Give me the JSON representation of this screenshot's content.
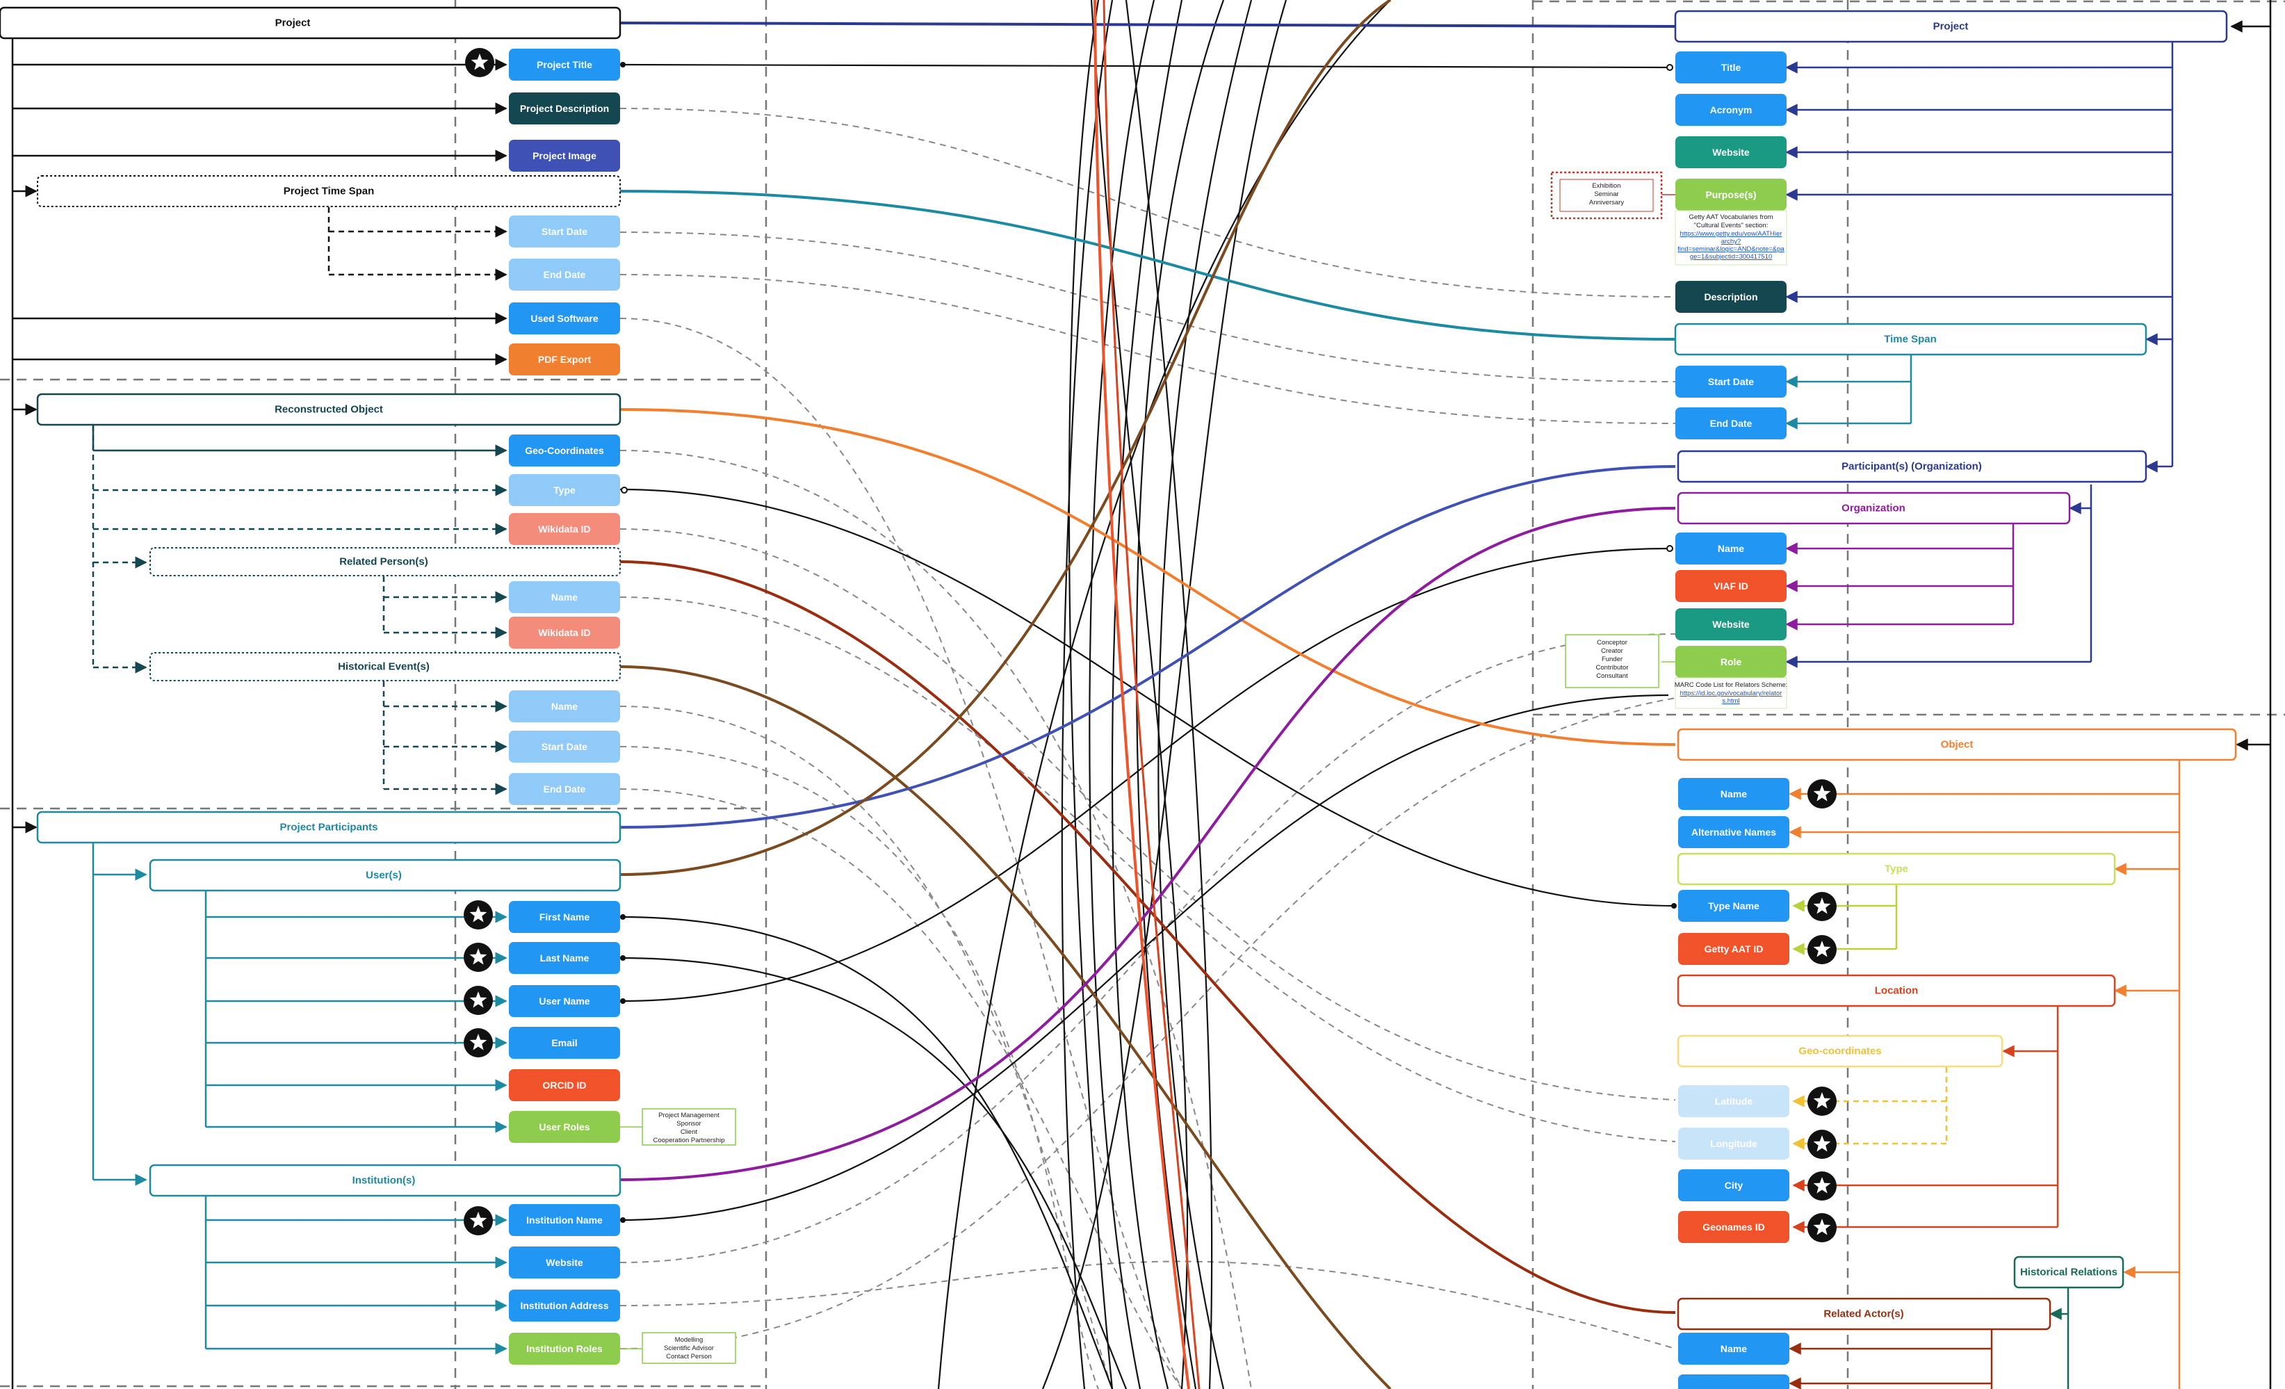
{
  "colors": {
    "blue": "#2196f3",
    "light_blue": "#90caf9",
    "pale_blue": "#c8e4f8",
    "teal": "#1a9a82",
    "green": "#8dcc4d",
    "red_orange": "#f0522a",
    "salmon": "#f48c7b",
    "dark_teal": "#14474f",
    "indigo": "#3f51b5",
    "orange": "#f07f30",
    "navy": "#2b3990",
    "cyan_teal": "#1c8aa0",
    "purple": "#8e1c9e",
    "brown": "#7b4a1f",
    "dark_red": "#9a2d0f",
    "lime": "#c8e05a",
    "gold": "#f0c233",
    "dark_green": "#176b58"
  },
  "left": {
    "sections": {
      "project": "Project",
      "time_span": "Project Time Span",
      "reconstructed_object": "Reconstructed Object",
      "related_persons": "Related Person(s)",
      "historical_events": "Historical Event(s)",
      "participants": "Project Participants",
      "users": "User(s)",
      "institutions": "Institution(s)"
    },
    "fields": {
      "project_title": "Project Title",
      "project_description": "Project Description",
      "project_image": "Project Image",
      "start_date": "Start Date",
      "end_date": "End Date",
      "used_software": "Used Software",
      "pdf_export": "PDF Export",
      "geo_coordinates": "Geo-Coordinates",
      "type": "Type",
      "wikidata_id": "Wikidata ID",
      "person_name": "Name",
      "person_wikidata_id": "Wikidata ID",
      "event_name": "Name",
      "event_start_date": "Start Date",
      "event_end_date": "End Date",
      "first_name": "First Name",
      "last_name": "Last Name",
      "user_name": "User Name",
      "email": "Email",
      "orcid_id": "ORCID ID",
      "user_roles": "User Roles",
      "institution_name": "Institution Name",
      "website": "Website",
      "institution_address": "Institution Address",
      "institution_roles": "Institution Roles"
    },
    "notes": {
      "user_roles": [
        "Project Management",
        "Sponsor",
        "Client",
        "Cooperation Partnership"
      ],
      "institution_roles": [
        "Modelling",
        "Scientific Advisor",
        "Contact Person"
      ]
    }
  },
  "right": {
    "sections": {
      "project": "Project",
      "time_span": "Time Span",
      "participants": "Participant(s) (Organization)",
      "organization": "Organization",
      "object": "Object",
      "type": "Type",
      "location": "Location",
      "geo_coordinates": "Geo-coordinates",
      "historical_relations": "Historical Relations",
      "related_actors": "Related Actor(s)"
    },
    "fields": {
      "title": "Title",
      "acronym": "Acronym",
      "website": "Website",
      "purposes": "Purpose(s)",
      "description": "Description",
      "start_date": "Start Date",
      "end_date": "End Date",
      "org_name": "Name",
      "viaf_id": "VIAF ID",
      "org_website": "Website",
      "role": "Role",
      "object_name": "Name",
      "alternative_names": "Alternative Names",
      "type_name": "Type Name",
      "getty_aat_id": "Getty AAT ID",
      "latitude": "Latitude",
      "longitude": "Longitude",
      "city": "City",
      "geonames_id": "Geonames ID",
      "actor_name": "Name"
    },
    "notes": {
      "events": [
        "Exhibition",
        "Seminar",
        "Anniversary"
      ],
      "purposes_caption": [
        "Getty AAT Vocabularies from",
        "\"Cultural Events\" section:"
      ],
      "purposes_link": [
        "https://www.getty.edu/vow/AATHier",
        "archy?",
        "find=seminar&logic=AND&note=&pa",
        "ge=1&subjectid=300417510"
      ],
      "roles": [
        "Conceptor",
        "Creator",
        "Funder",
        "Contributor",
        "Consultant"
      ],
      "roles_caption": [
        "MARC Code List for Relators Scheme:"
      ],
      "roles_link": [
        "https://id.loc.gov/vocabulary/relator",
        "s.html"
      ]
    }
  },
  "icons": {
    "star": "star-badge-icon",
    "arrow": "arrowhead-icon"
  }
}
